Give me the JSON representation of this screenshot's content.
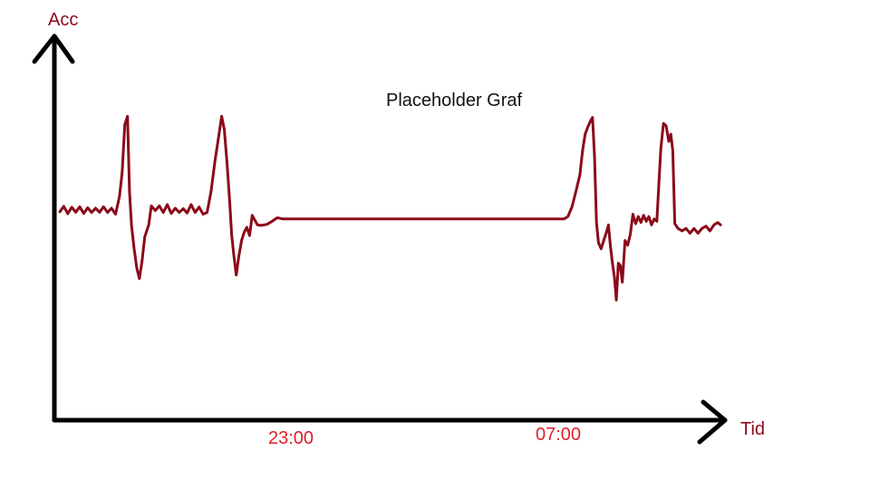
{
  "chart_data": {
    "type": "line",
    "title": "Placeholder Graf",
    "xlabel": "Tid",
    "ylabel": "Acc",
    "x_ticks": [
      "23:00",
      "07:00"
    ],
    "grid": false,
    "legend": "none",
    "colors": {
      "series": "#8b0a1a",
      "x_label": "#8b0a1a",
      "y_label": "#8b0a1a",
      "ticks": "#e0202a",
      "title": "#111111",
      "axes": "#000000"
    },
    "series": [
      {
        "points": [
          [
            0.0,
            0.65
          ],
          [
            0.3,
            0.88
          ],
          [
            0.6,
            0.57
          ],
          [
            0.9,
            0.84
          ],
          [
            1.2,
            0.63
          ],
          [
            1.5,
            0.86
          ],
          [
            1.8,
            0.58
          ],
          [
            2.1,
            0.82
          ],
          [
            2.4,
            0.62
          ],
          [
            2.7,
            0.8
          ],
          [
            3.0,
            0.63
          ],
          [
            3.3,
            0.86
          ],
          [
            3.6,
            0.62
          ],
          [
            3.9,
            0.8
          ],
          [
            4.2,
            0.55
          ],
          [
            4.5,
            1.3
          ],
          [
            4.7,
            2.3
          ],
          [
            4.9,
            4.3
          ],
          [
            5.1,
            4.65
          ],
          [
            5.25,
            1.5
          ],
          [
            5.4,
            0.1
          ],
          [
            5.6,
            -0.9
          ],
          [
            5.8,
            -1.7
          ],
          [
            6.0,
            -2.15
          ],
          [
            6.2,
            -1.4
          ],
          [
            6.4,
            -0.4
          ],
          [
            6.7,
            0.1
          ],
          [
            6.9,
            0.9
          ],
          [
            7.2,
            0.7
          ],
          [
            7.5,
            0.9
          ],
          [
            7.8,
            0.62
          ],
          [
            8.1,
            0.95
          ],
          [
            8.4,
            0.58
          ],
          [
            8.7,
            0.8
          ],
          [
            9.0,
            0.62
          ],
          [
            9.3,
            0.78
          ],
          [
            9.6,
            0.6
          ],
          [
            9.9,
            0.95
          ],
          [
            10.2,
            0.62
          ],
          [
            10.5,
            0.85
          ],
          [
            10.8,
            0.55
          ],
          [
            11.1,
            0.62
          ],
          [
            11.4,
            1.5
          ],
          [
            11.7,
            2.8
          ],
          [
            12.0,
            3.9
          ],
          [
            12.2,
            4.65
          ],
          [
            12.4,
            4.1
          ],
          [
            12.6,
            2.7
          ],
          [
            12.8,
            1.1
          ],
          [
            12.95,
            -0.3
          ],
          [
            13.1,
            -1.1
          ],
          [
            13.3,
            -2.0
          ],
          [
            13.5,
            -1.2
          ],
          [
            13.7,
            -0.55
          ],
          [
            13.9,
            -0.2
          ],
          [
            14.1,
            0.0
          ],
          [
            14.3,
            -0.35
          ],
          [
            14.5,
            0.5
          ],
          [
            14.7,
            0.3
          ],
          [
            14.9,
            0.1
          ],
          [
            15.2,
            0.08
          ],
          [
            15.6,
            0.12
          ],
          [
            16.0,
            0.25
          ],
          [
            16.4,
            0.4
          ],
          [
            16.8,
            0.35
          ],
          [
            17.2,
            0.35
          ],
          [
            18.0,
            0.35
          ],
          [
            19.0,
            0.35
          ],
          [
            20.0,
            0.35
          ],
          [
            21.0,
            0.35
          ],
          [
            22.0,
            0.35
          ],
          [
            23.0,
            0.35
          ],
          [
            24.0,
            0.35
          ],
          [
            25.0,
            0.35
          ],
          [
            26.0,
            0.35
          ],
          [
            27.0,
            0.35
          ],
          [
            28.0,
            0.35
          ],
          [
            29.0,
            0.35
          ],
          [
            30.0,
            0.35
          ],
          [
            31.0,
            0.35
          ],
          [
            32.0,
            0.35
          ],
          [
            33.0,
            0.35
          ],
          [
            34.0,
            0.35
          ],
          [
            35.0,
            0.35
          ],
          [
            36.0,
            0.35
          ],
          [
            37.0,
            0.35
          ],
          [
            38.0,
            0.35
          ],
          [
            38.3,
            0.45
          ],
          [
            38.6,
            0.85
          ],
          [
            38.9,
            1.5
          ],
          [
            39.2,
            2.2
          ],
          [
            39.4,
            3.2
          ],
          [
            39.6,
            3.9
          ],
          [
            39.8,
            4.2
          ],
          [
            40.0,
            4.45
          ],
          [
            40.15,
            4.6
          ],
          [
            40.3,
            3.0
          ],
          [
            40.45,
            0.2
          ],
          [
            40.6,
            -0.65
          ],
          [
            40.8,
            -0.9
          ],
          [
            41.0,
            -0.55
          ],
          [
            41.2,
            -0.2
          ],
          [
            41.35,
            0.1
          ],
          [
            41.5,
            -0.8
          ],
          [
            41.65,
            -1.5
          ],
          [
            41.8,
            -2.1
          ],
          [
            41.95,
            -3.05
          ],
          [
            42.1,
            -1.5
          ],
          [
            42.25,
            -1.6
          ],
          [
            42.4,
            -2.3
          ],
          [
            42.6,
            -0.55
          ],
          [
            42.8,
            -0.75
          ],
          [
            43.0,
            -0.3
          ],
          [
            43.2,
            0.55
          ],
          [
            43.4,
            0.15
          ],
          [
            43.6,
            0.45
          ],
          [
            43.8,
            0.2
          ],
          [
            44.0,
            0.5
          ],
          [
            44.2,
            0.25
          ],
          [
            44.4,
            0.45
          ],
          [
            44.6,
            0.1
          ],
          [
            44.8,
            0.35
          ],
          [
            45.0,
            0.25
          ],
          [
            45.15,
            1.8
          ],
          [
            45.3,
            3.3
          ],
          [
            45.5,
            4.35
          ],
          [
            45.7,
            4.25
          ],
          [
            45.9,
            3.6
          ],
          [
            46.05,
            3.9
          ],
          [
            46.2,
            3.2
          ],
          [
            46.35,
            0.15
          ],
          [
            46.6,
            -0.05
          ],
          [
            46.9,
            -0.15
          ],
          [
            47.2,
            -0.05
          ],
          [
            47.5,
            -0.25
          ],
          [
            47.8,
            -0.05
          ],
          [
            48.1,
            -0.25
          ],
          [
            48.4,
            -0.05
          ],
          [
            48.7,
            0.05
          ],
          [
            49.0,
            -0.15
          ],
          [
            49.3,
            0.1
          ],
          [
            49.6,
            0.2
          ],
          [
            49.8,
            0.1
          ]
        ]
      }
    ],
    "xlim": [
      0,
      50
    ],
    "ylim": [
      -8,
      8
    ]
  }
}
